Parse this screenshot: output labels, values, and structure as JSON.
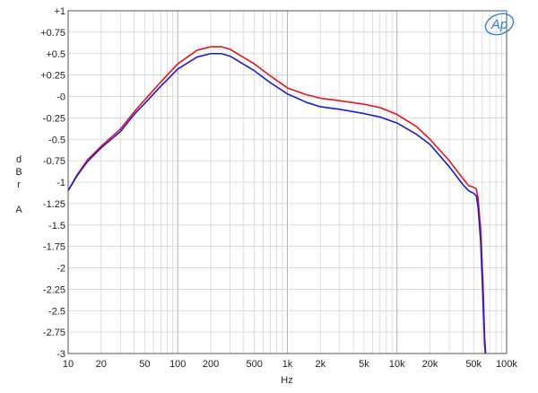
{
  "chart_data": {
    "type": "line",
    "title": "",
    "xlabel": "Hz",
    "ylabel": "dBr A",
    "ylabel_lines": [
      "d",
      "B",
      "r",
      "",
      "A"
    ],
    "xscale": "log",
    "xlim": [
      10,
      100000
    ],
    "ylim": [
      -3,
      1
    ],
    "grid": true,
    "x_ticks": [
      {
        "value": 10,
        "label": "10"
      },
      {
        "value": 20,
        "label": "20"
      },
      {
        "value": 50,
        "label": "50"
      },
      {
        "value": 100,
        "label": "100"
      },
      {
        "value": 200,
        "label": "200"
      },
      {
        "value": 500,
        "label": "500"
      },
      {
        "value": 1000,
        "label": "1k"
      },
      {
        "value": 2000,
        "label": "2k"
      },
      {
        "value": 5000,
        "label": "5k"
      },
      {
        "value": 10000,
        "label": "10k"
      },
      {
        "value": 20000,
        "label": "20k"
      },
      {
        "value": 50000,
        "label": "50k"
      },
      {
        "value": 100000,
        "label": "100k"
      }
    ],
    "y_ticks": [
      {
        "value": 1,
        "label": "+1"
      },
      {
        "value": 0.75,
        "label": "+0.75"
      },
      {
        "value": 0.5,
        "label": "+0.5"
      },
      {
        "value": 0.25,
        "label": "+0.25"
      },
      {
        "value": 0,
        "label": "-0"
      },
      {
        "value": -0.25,
        "label": "-0.25"
      },
      {
        "value": -0.5,
        "label": "-0.5"
      },
      {
        "value": -0.75,
        "label": "-0.75"
      },
      {
        "value": -1,
        "label": "-1"
      },
      {
        "value": -1.25,
        "label": "-1.25"
      },
      {
        "value": -1.5,
        "label": "-1.5"
      },
      {
        "value": -1.75,
        "label": "-1.75"
      },
      {
        "value": -2,
        "label": "-2"
      },
      {
        "value": -2.25,
        "label": "-2.25"
      },
      {
        "value": -2.5,
        "label": "-2.5"
      },
      {
        "value": -2.75,
        "label": "-2.75"
      },
      {
        "value": -3,
        "label": "-3"
      }
    ],
    "series": [
      {
        "color": "#e8141c",
        "points": [
          [
            10,
            -1.1
          ],
          [
            12,
            -0.92
          ],
          [
            15,
            -0.74
          ],
          [
            20,
            -0.58
          ],
          [
            30,
            -0.38
          ],
          [
            40,
            -0.18
          ],
          [
            50,
            -0.04
          ],
          [
            70,
            0.17
          ],
          [
            100,
            0.38
          ],
          [
            150,
            0.54
          ],
          [
            200,
            0.58
          ],
          [
            250,
            0.58
          ],
          [
            300,
            0.55
          ],
          [
            500,
            0.38
          ],
          [
            700,
            0.24
          ],
          [
            1000,
            0.1
          ],
          [
            1500,
            0.02
          ],
          [
            2000,
            -0.02
          ],
          [
            3000,
            -0.05
          ],
          [
            5000,
            -0.09
          ],
          [
            7000,
            -0.13
          ],
          [
            10000,
            -0.21
          ],
          [
            15000,
            -0.35
          ],
          [
            20000,
            -0.5
          ],
          [
            30000,
            -0.75
          ],
          [
            40000,
            -0.96
          ],
          [
            45000,
            -1.04
          ],
          [
            50000,
            -1.06
          ],
          [
            53000,
            -1.08
          ],
          [
            55000,
            -1.2
          ],
          [
            58000,
            -1.55
          ],
          [
            61000,
            -2.2
          ],
          [
            63000,
            -2.8
          ],
          [
            64500,
            -3.0
          ]
        ]
      },
      {
        "color": "#1a1ad6",
        "points": [
          [
            10,
            -1.1
          ],
          [
            12,
            -0.93
          ],
          [
            15,
            -0.76
          ],
          [
            20,
            -0.6
          ],
          [
            30,
            -0.41
          ],
          [
            40,
            -0.21
          ],
          [
            50,
            -0.08
          ],
          [
            70,
            0.12
          ],
          [
            100,
            0.32
          ],
          [
            150,
            0.46
          ],
          [
            200,
            0.5
          ],
          [
            250,
            0.5
          ],
          [
            300,
            0.47
          ],
          [
            500,
            0.3
          ],
          [
            700,
            0.16
          ],
          [
            1000,
            0.03
          ],
          [
            1500,
            -0.07
          ],
          [
            2000,
            -0.12
          ],
          [
            3000,
            -0.15
          ],
          [
            5000,
            -0.2
          ],
          [
            7000,
            -0.24
          ],
          [
            10000,
            -0.31
          ],
          [
            15000,
            -0.44
          ],
          [
            20000,
            -0.56
          ],
          [
            30000,
            -0.82
          ],
          [
            40000,
            -1.03
          ],
          [
            45000,
            -1.1
          ],
          [
            50000,
            -1.13
          ],
          [
            53000,
            -1.16
          ],
          [
            55000,
            -1.3
          ],
          [
            58000,
            -1.7
          ],
          [
            61000,
            -2.4
          ],
          [
            63000,
            -2.9
          ],
          [
            64000,
            -3.0
          ]
        ]
      }
    ]
  },
  "logo": {
    "text": "Ap",
    "color": "#2a7fd4"
  }
}
